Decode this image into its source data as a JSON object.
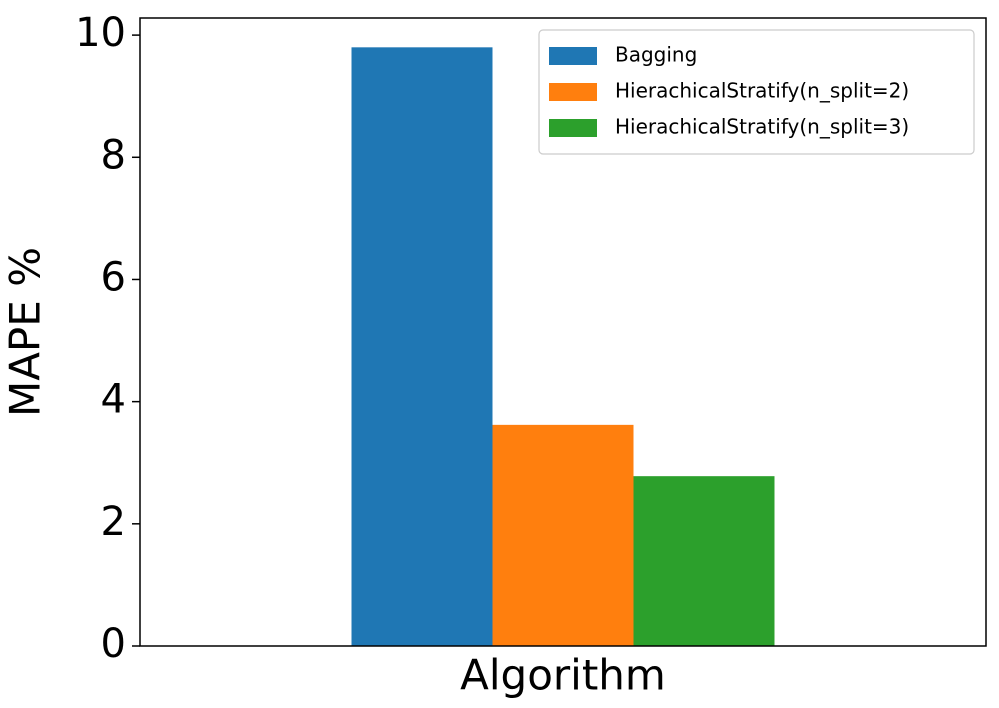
{
  "chart_data": {
    "type": "bar",
    "xlabel": "Algorithm",
    "ylabel": "MAPE %",
    "categories": [
      null
    ],
    "series": [
      {
        "name": "Bagging",
        "color": "#1f77b4",
        "values": [
          9.8
        ]
      },
      {
        "name": "HierachicalStratify(n_split=2)",
        "color": "#ff7f0e",
        "values": [
          3.62
        ]
      },
      {
        "name": "HierachicalStratify(n_split=3)",
        "color": "#2ca02c",
        "values": [
          2.78
        ]
      }
    ],
    "ylim": [
      0,
      10.28
    ],
    "yticks": [
      0,
      2,
      4,
      6,
      8,
      10
    ],
    "grid": false,
    "legend": "upper right"
  }
}
